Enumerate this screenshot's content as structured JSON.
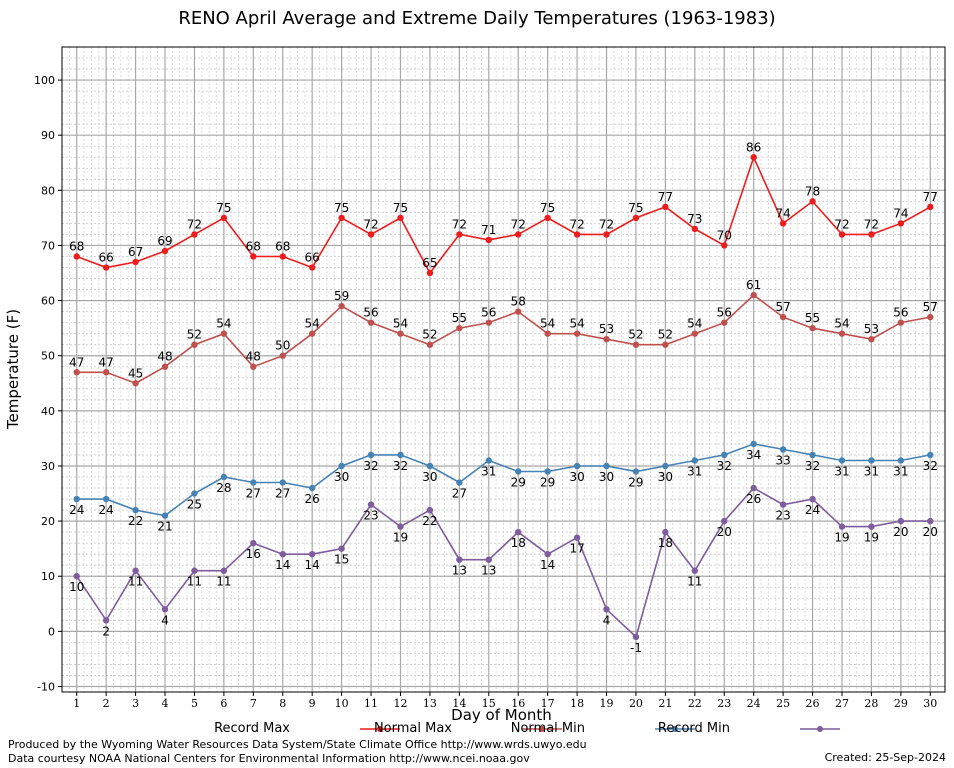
{
  "title": "RENO April Average and Extreme Daily Temperatures (1963-1983)",
  "xlabel": "Day of Month",
  "ylabel": "Temperature (F)",
  "credits": {
    "produced_by": "Produced by the Wyoming Water Resources Data System/State Climate Office http://www.wrds.uwyo.edu",
    "courtesy": "Data courtesy NOAA National Centers for Environmental Information http://www.ncei.noaa.gov",
    "created": "Created:  25-Sep-2024"
  },
  "legend": [
    {
      "label": "Record Max",
      "color": "#ee1c1c"
    },
    {
      "label": "Normal Max",
      "color": "#c0504d"
    },
    {
      "label": "Normal Min",
      "color": "#4682b4"
    },
    {
      "label": "Record Min",
      "color": "#7e5c9e"
    }
  ],
  "chart_data": {
    "type": "line",
    "x": [
      1,
      2,
      3,
      4,
      5,
      6,
      7,
      8,
      9,
      10,
      11,
      12,
      13,
      14,
      15,
      16,
      17,
      18,
      19,
      20,
      21,
      22,
      23,
      24,
      25,
      26,
      27,
      28,
      29,
      30
    ],
    "xlim": [
      0.5,
      30.5
    ],
    "ylim": [
      -11,
      106
    ],
    "yticks": [
      -10,
      0,
      10,
      20,
      30,
      40,
      50,
      60,
      70,
      80,
      90,
      100
    ],
    "grid": true,
    "series": [
      {
        "name": "Record Max",
        "color": "#ee1c1c",
        "label_pos": "above",
        "values": [
          68,
          66,
          67,
          69,
          72,
          75,
          68,
          68,
          66,
          75,
          72,
          75,
          65,
          72,
          71,
          72,
          75,
          72,
          72,
          75,
          77,
          73,
          70,
          86,
          74,
          78,
          72,
          72,
          74,
          77
        ]
      },
      {
        "name": "Normal Max",
        "color": "#c0504d",
        "label_pos": "above",
        "values": [
          47,
          47,
          45,
          48,
          52,
          54,
          48,
          50,
          54,
          59,
          56,
          54,
          52,
          55,
          56,
          58,
          54,
          54,
          53,
          52,
          52,
          54,
          56,
          61,
          57,
          55,
          54,
          53,
          56,
          57
        ]
      },
      {
        "name": "Normal Min",
        "color": "#4682b4",
        "label_pos": "below",
        "values": [
          24,
          24,
          22,
          21,
          25,
          28,
          27,
          27,
          26,
          30,
          32,
          32,
          30,
          27,
          31,
          29,
          29,
          30,
          30,
          29,
          30,
          31,
          32,
          34,
          33,
          32,
          31,
          31,
          31,
          32
        ]
      },
      {
        "name": "Record Min",
        "color": "#7e5c9e",
        "label_pos": "below",
        "values": [
          10,
          2,
          11,
          4,
          11,
          11,
          16,
          14,
          14,
          15,
          23,
          19,
          22,
          13,
          13,
          18,
          14,
          17,
          4,
          -1,
          18,
          11,
          20,
          26,
          23,
          24,
          19,
          19,
          20,
          20
        ]
      }
    ]
  }
}
